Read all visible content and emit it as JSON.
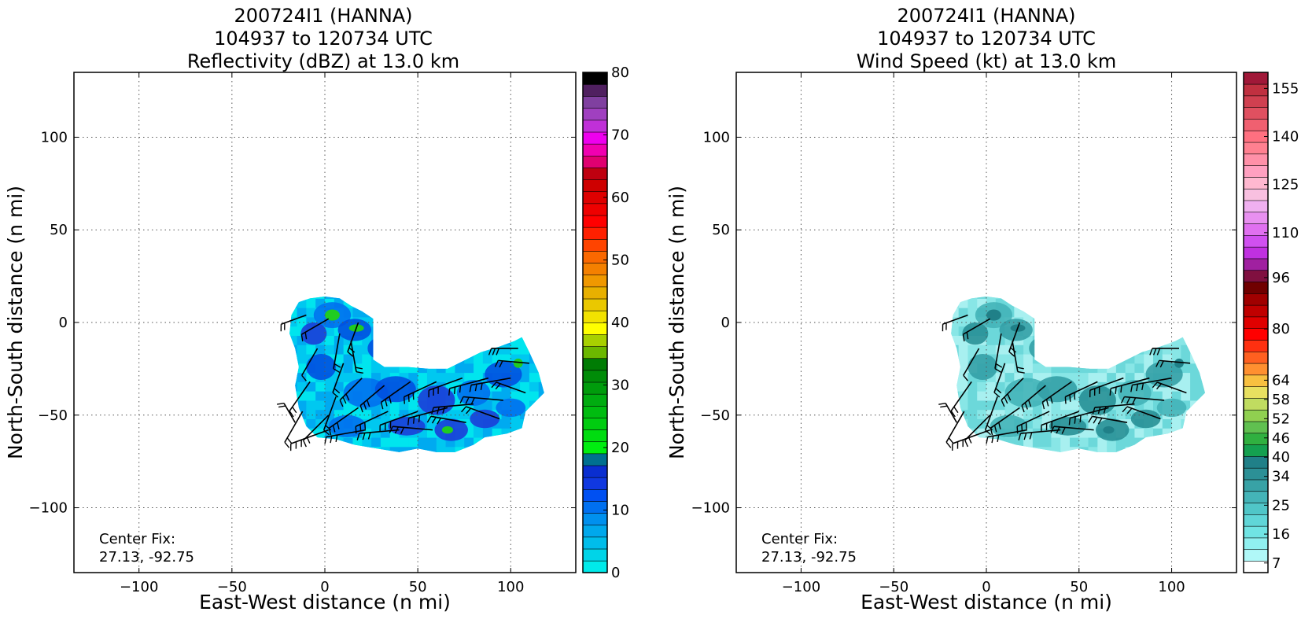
{
  "chart_data": [
    {
      "type": "heatmap",
      "title_lines": [
        "200724I1 (HANNA)",
        "104937 to 120734 UTC",
        "Reflectivity (dBZ) at 13.0 km"
      ],
      "xlabel": "East-West distance (n mi)",
      "ylabel": "North-South distance (n mi)",
      "xlim": [
        -135,
        135
      ],
      "ylim": [
        -135,
        135
      ],
      "xticks": [
        -100,
        -50,
        0,
        50,
        100
      ],
      "yticks": [
        -100,
        -50,
        0,
        50,
        100
      ],
      "grid": true,
      "annotation_lines": [
        "Center Fix:",
        "27.13, -92.75"
      ],
      "colorbar": {
        "min": 0,
        "max": 80,
        "levels": 40,
        "tick_values": [
          0,
          10,
          20,
          30,
          40,
          50,
          60,
          70,
          80
        ],
        "tick_labels": [
          "0",
          "10",
          "20",
          "30",
          "40",
          "50",
          "60",
          "70",
          "80"
        ],
        "colors": [
          "#00eaea",
          "#00d4e8",
          "#00bdea",
          "#00a8ec",
          "#0090ee",
          "#0070f0",
          "#0050f2",
          "#1038e0",
          "#0a2ed0",
          "#007090",
          "#00ee10",
          "#00dc10",
          "#00cc10",
          "#00bc10",
          "#00ac10",
          "#009c0c",
          "#008c08",
          "#007c04",
          "#6cb800",
          "#a8d000",
          "#ffff00",
          "#f2e200",
          "#eac800",
          "#e8b000",
          "#f09800",
          "#f48000",
          "#fa6800",
          "#ff4400",
          "#ff2000",
          "#ff0000",
          "#ee0000",
          "#de0000",
          "#ce0000",
          "#bf0010",
          "#e00070",
          "#f000b0",
          "#ee00ee",
          "#c030d8",
          "#a040c0",
          "#8040a0",
          "#502060",
          "#000000"
        ]
      },
      "field_colors": [
        "#00e5ee",
        "#00c8f0",
        "#00aaf0",
        "#0090f0",
        "#0070ee",
        "#0050e0",
        "#1a3ed8"
      ],
      "highlight_color": "#20cc20",
      "barb_color": "#000000"
    },
    {
      "type": "heatmap",
      "title_lines": [
        "200724I1 (HANNA)",
        "104937 to 120734 UTC",
        "Wind Speed (kt) at 13.0 km"
      ],
      "xlabel": "East-West distance (n mi)",
      "ylabel": "North-South distance (n mi)",
      "xlim": [
        -135,
        135
      ],
      "ylim": [
        -135,
        135
      ],
      "xticks": [
        -100,
        -50,
        0,
        50,
        100
      ],
      "yticks": [
        -100,
        -50,
        0,
        50,
        100
      ],
      "grid": true,
      "annotation_lines": [
        "Center Fix:",
        "27.13, -92.75"
      ],
      "colorbar": {
        "min": 4,
        "max": 160,
        "levels": 52,
        "tick_values": [
          7,
          16,
          25,
          34,
          40,
          46,
          52,
          58,
          64,
          80,
          96,
          110,
          125,
          140,
          155
        ],
        "tick_labels": [
          "7",
          "16",
          "25",
          "34",
          "40",
          "46",
          "52",
          "58",
          "64",
          "80",
          "96",
          "110",
          "125",
          "140",
          "155"
        ],
        "colors": [
          "#ffffff",
          "#b0f8f8",
          "#90f0f0",
          "#70e4e4",
          "#60d6d8",
          "#50c6c8",
          "#44b4b8",
          "#38a2a6",
          "#2c9096",
          "#208088",
          "#14a050",
          "#30b040",
          "#60c050",
          "#90d050",
          "#c0dc60",
          "#e8e060",
          "#f8c040",
          "#ff9030",
          "#ff6020",
          "#ff3010",
          "#ff0000",
          "#e00000",
          "#c00000",
          "#a00000",
          "#700000",
          "#801040",
          "#a020a0",
          "#c030e0",
          "#d050f0",
          "#e070f0",
          "#e890f0",
          "#f0b0f0",
          "#f8c0e0",
          "#ffb8d0",
          "#ffa0c0",
          "#ff90a8",
          "#ff8090",
          "#ff7080",
          "#f06070",
          "#e05060",
          "#d04050",
          "#c03040",
          "#a01838"
        ]
      },
      "field_colors": [
        "#a8f0f0",
        "#88e6e6",
        "#6cd8da",
        "#56c8cc",
        "#44b4b8",
        "#34a0a6",
        "#289096"
      ],
      "highlight_color": "#208088",
      "barb_color": "#000000"
    }
  ]
}
